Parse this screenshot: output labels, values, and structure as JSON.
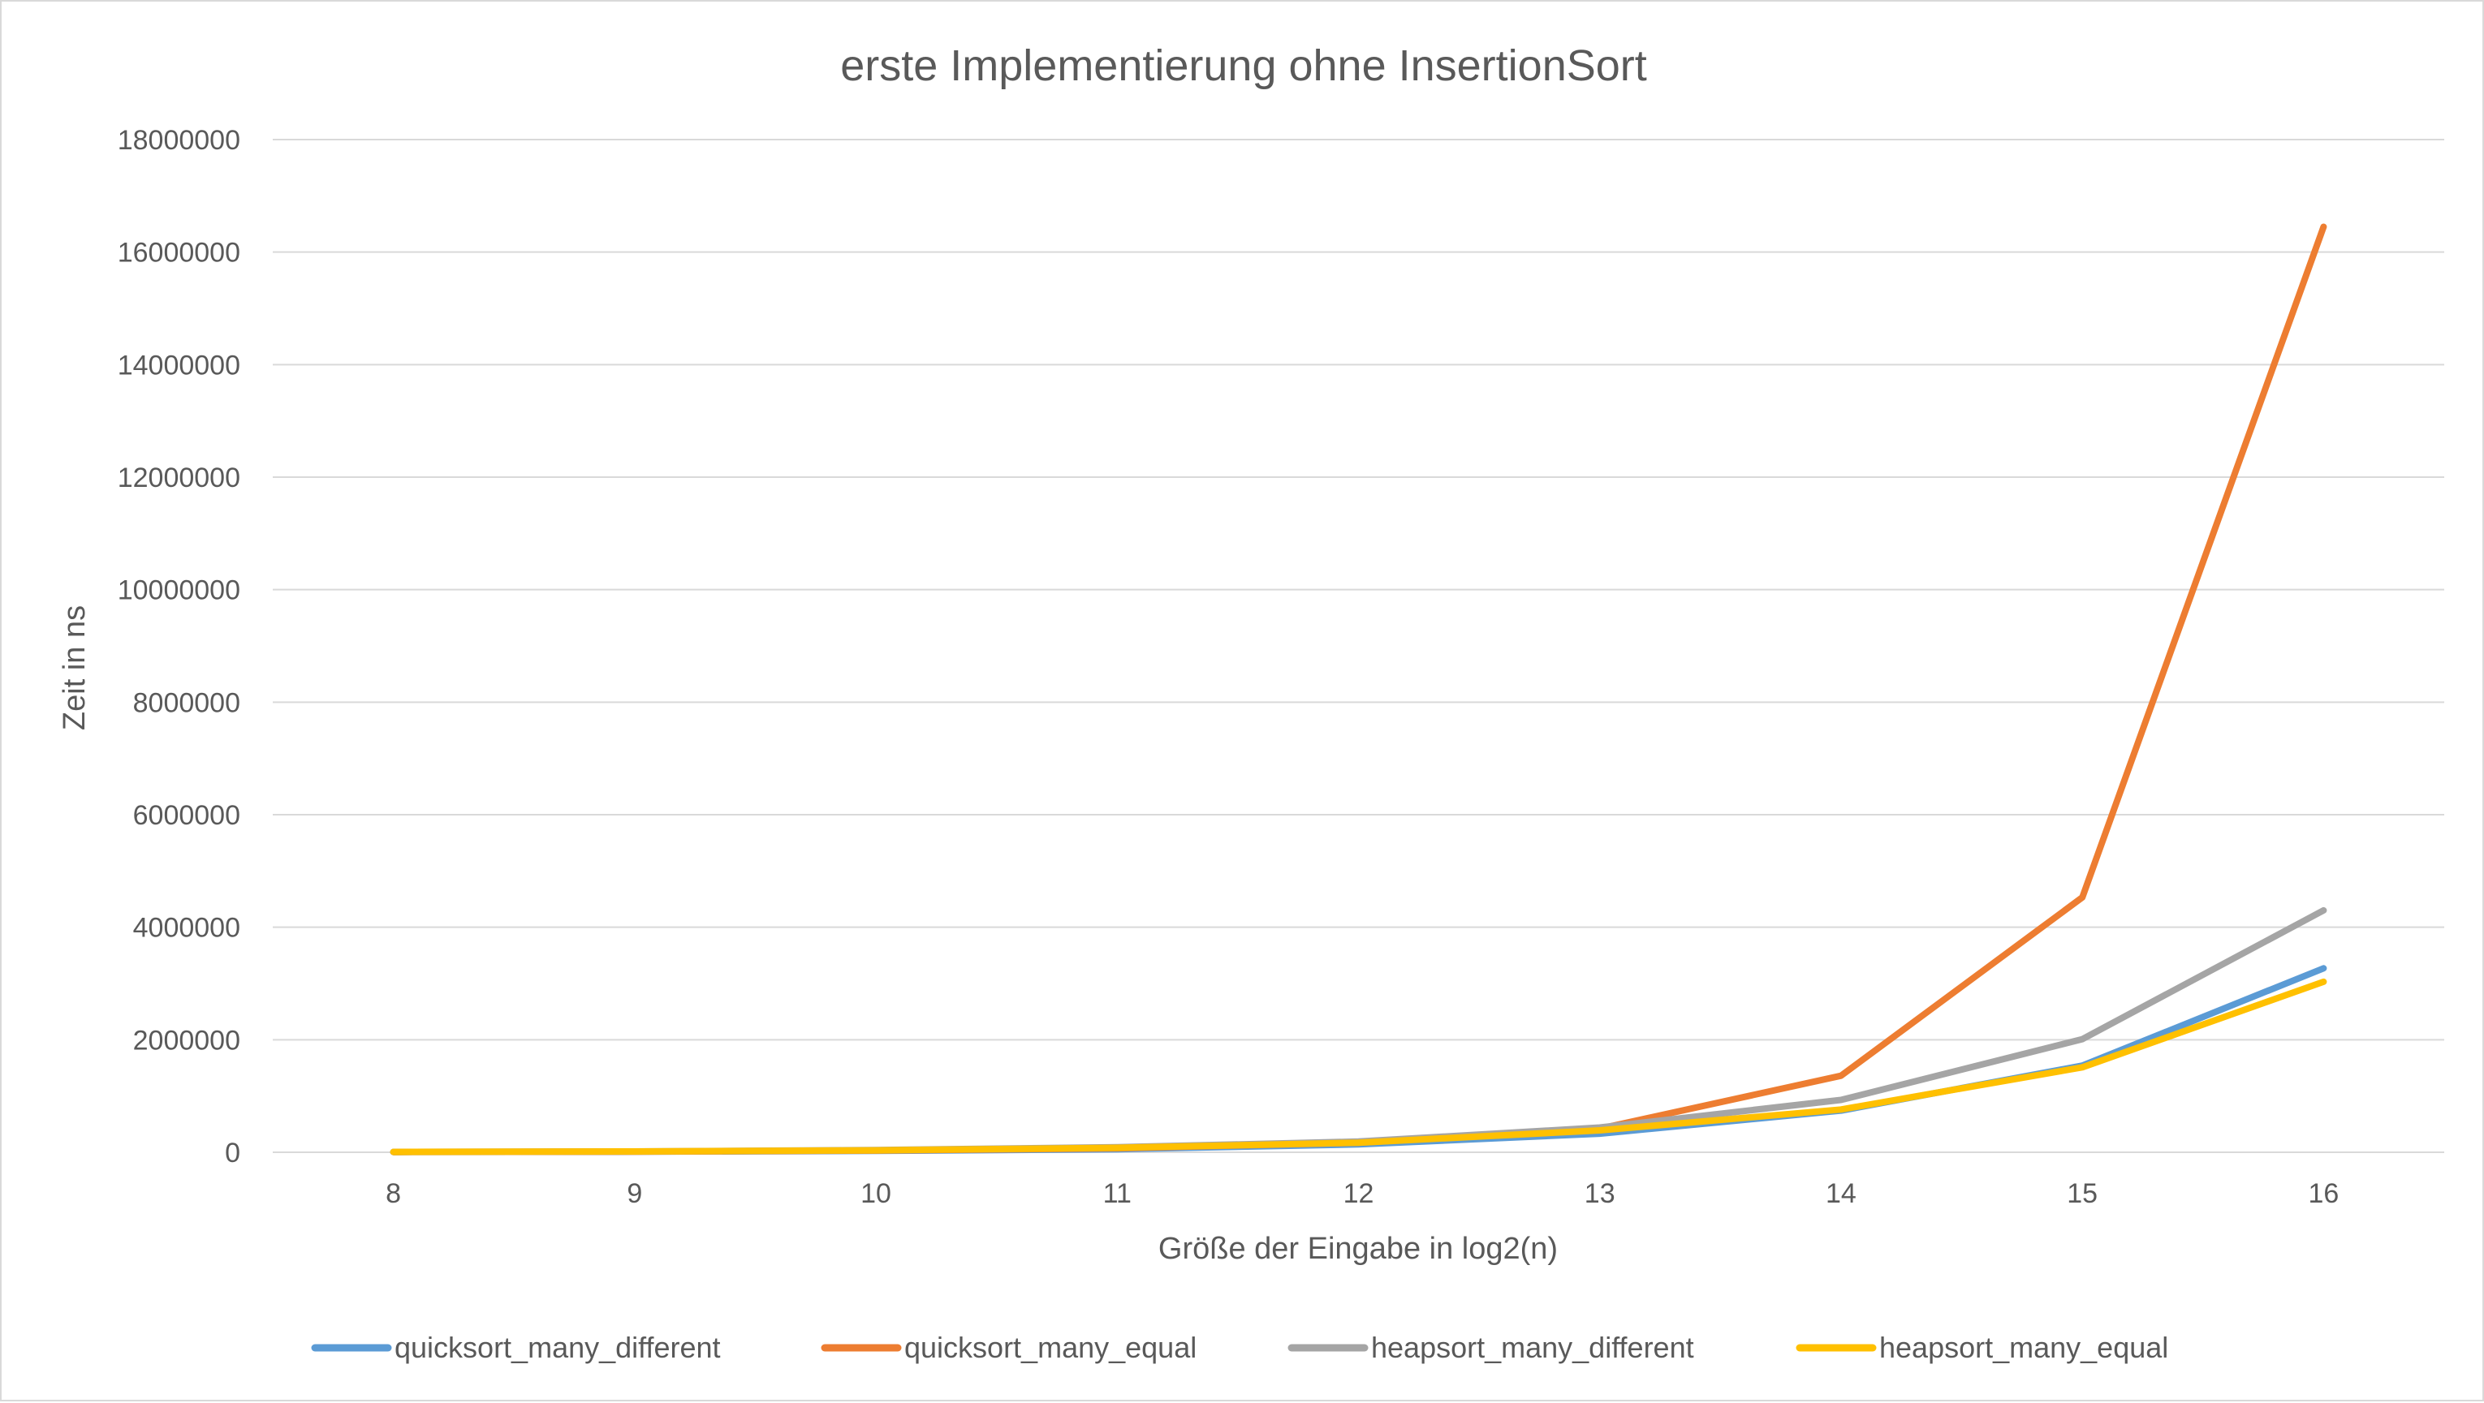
{
  "chart_data": {
    "type": "line",
    "title": "erste Implementierung ohne InsertionSort",
    "xlabel": "Größe der Eingabe in log2(n)",
    "ylabel": "Zeit in ns",
    "categories": [
      "8",
      "9",
      "10",
      "11",
      "12",
      "13",
      "14",
      "15",
      "16"
    ],
    "ylim": [
      0,
      18000000
    ],
    "yticks": [
      "0",
      "2000000",
      "4000000",
      "6000000",
      "8000000",
      "10000000",
      "12000000",
      "14000000",
      "16000000",
      "18000000"
    ],
    "grid": true,
    "legend_position": "bottom",
    "series": [
      {
        "name": "quicksort_many_different",
        "color": "#5b9bd5",
        "values": [
          5000,
          10000,
          25000,
          55000,
          140000,
          330000,
          740000,
          1540000,
          3270000
        ]
      },
      {
        "name": "quicksort_many_equal",
        "color": "#ed7d31",
        "values": [
          5000,
          12000,
          30000,
          70000,
          170000,
          420000,
          1360000,
          4530000,
          16450000
        ]
      },
      {
        "name": "heapsort_many_different",
        "color": "#a5a5a5",
        "values": [
          6000,
          15000,
          40000,
          90000,
          190000,
          440000,
          930000,
          2010000,
          4300000
        ]
      },
      {
        "name": "heapsort_many_equal",
        "color": "#ffc000",
        "values": [
          6000,
          15000,
          35000,
          80000,
          170000,
          390000,
          760000,
          1510000,
          3030000
        ]
      }
    ]
  }
}
